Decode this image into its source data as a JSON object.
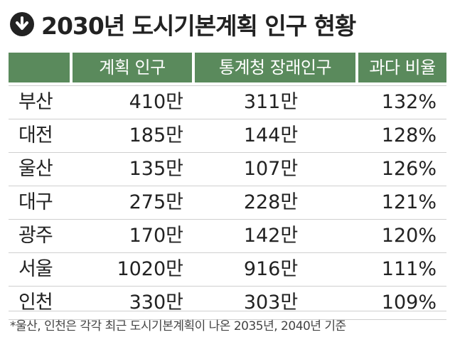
{
  "title": "2030년 도시기본계획 인구 현황",
  "title_icon": "arrow-down-circle-icon",
  "colors": {
    "header_bg": "#5a8a5c",
    "header_text": "#ffffff",
    "text": "#222222",
    "rule": "#cfcfcf"
  },
  "footnote": "*울산, 인천은 각각 최근 도시기본계획이 나온 2035년, 2040년 기준",
  "chart_data": {
    "type": "table",
    "title": "2030년 도시기본계획 인구 현황",
    "columns": [
      "",
      "계획 인구",
      "통계청 장래인구",
      "과다 비율"
    ],
    "rows": [
      {
        "city": "부산",
        "plan": "410만",
        "stat": "311만",
        "ratio": "132%"
      },
      {
        "city": "대전",
        "plan": "185만",
        "stat": "144만",
        "ratio": "128%"
      },
      {
        "city": "울산",
        "plan": "135만",
        "stat": "107만",
        "ratio": "126%"
      },
      {
        "city": "대구",
        "plan": "275만",
        "stat": "228만",
        "ratio": "121%"
      },
      {
        "city": "광주",
        "plan": "170만",
        "stat": "142만",
        "ratio": "120%"
      },
      {
        "city": "서울",
        "plan": "1020만",
        "stat": "916만",
        "ratio": "111%"
      },
      {
        "city": "인천",
        "plan": "330만",
        "stat": "303만",
        "ratio": "109%"
      }
    ],
    "footnote": "*울산, 인천은 각각 최근 도시기본계획이 나온 2035년, 2040년 기준"
  }
}
